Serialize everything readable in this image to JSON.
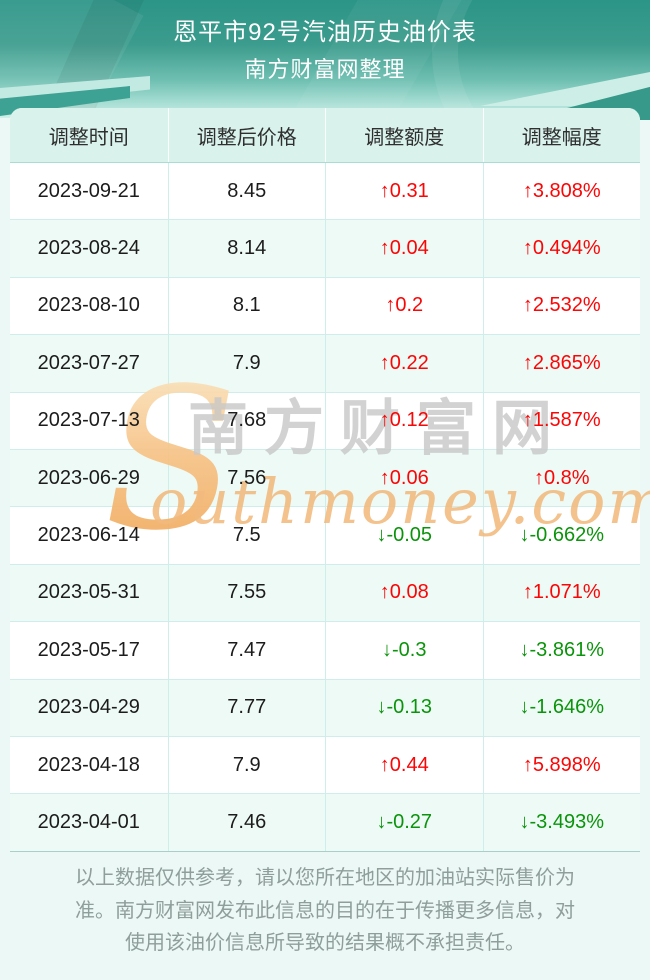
{
  "banner": {
    "title": "恩平市92号汽油历史油价表",
    "subtitle": "南方财富网整理"
  },
  "table": {
    "columns": [
      "调整时间",
      "调整后价格",
      "调整额度",
      "调整幅度"
    ],
    "up": {
      "arrow": "↑",
      "color": "#fb0505"
    },
    "down": {
      "arrow": "↓",
      "color": "#0b940b"
    },
    "rows": [
      {
        "date": "2023-09-21",
        "price": "8.45",
        "amount": "0.31",
        "percent": "3.808%",
        "direction": "up"
      },
      {
        "date": "2023-08-24",
        "price": "8.14",
        "amount": "0.04",
        "percent": "0.494%",
        "direction": "up"
      },
      {
        "date": "2023-08-10",
        "price": "8.1",
        "amount": "0.2",
        "percent": "2.532%",
        "direction": "up"
      },
      {
        "date": "2023-07-27",
        "price": "7.9",
        "amount": "0.22",
        "percent": "2.865%",
        "direction": "up"
      },
      {
        "date": "2023-07-13",
        "price": "7.68",
        "amount": "0.12",
        "percent": "1.587%",
        "direction": "up"
      },
      {
        "date": "2023-06-29",
        "price": "7.56",
        "amount": "0.06",
        "percent": "0.8%",
        "direction": "up"
      },
      {
        "date": "2023-06-14",
        "price": "7.5",
        "amount": "-0.05",
        "percent": "-0.662%",
        "direction": "down"
      },
      {
        "date": "2023-05-31",
        "price": "7.55",
        "amount": "0.08",
        "percent": "1.071%",
        "direction": "up"
      },
      {
        "date": "2023-05-17",
        "price": "7.47",
        "amount": "-0.3",
        "percent": "-3.861%",
        "direction": "down"
      },
      {
        "date": "2023-04-29",
        "price": "7.77",
        "amount": "-0.13",
        "percent": "-1.646%",
        "direction": "down"
      },
      {
        "date": "2023-04-18",
        "price": "7.9",
        "amount": "0.44",
        "percent": "5.898%",
        "direction": "up"
      },
      {
        "date": "2023-04-01",
        "price": "7.46",
        "amount": "-0.27",
        "percent": "-3.493%",
        "direction": "down"
      }
    ]
  },
  "watermark": {
    "initial": "S",
    "cn": "南方财富网",
    "en": "outhmoney.com"
  },
  "footer": {
    "disclaimer": "以上数据仅供参考，请以您所在地区的加油站实际售价为准。南方财富网发布此信息的目的在于传播更多信息，对使用该油价信息所导致的结果概不承担责任。"
  },
  "chart_data": {
    "type": "table",
    "title": "恩平市92号汽油历史油价表",
    "subtitle": "南方财富网整理",
    "columns": [
      "调整时间",
      "调整后价格",
      "调整额度",
      "调整幅度"
    ],
    "rows": [
      [
        "2023-09-21",
        "8.45",
        "↑0.31",
        "↑3.808%"
      ],
      [
        "2023-08-24",
        "8.14",
        "↑0.04",
        "↑0.494%"
      ],
      [
        "2023-08-10",
        "8.1",
        "↑0.2",
        "↑2.532%"
      ],
      [
        "2023-07-27",
        "7.9",
        "↑0.22",
        "↑2.865%"
      ],
      [
        "2023-07-13",
        "7.68",
        "↑0.12",
        "↑1.587%"
      ],
      [
        "2023-06-29",
        "7.56",
        "↑0.06",
        "↑0.8%"
      ],
      [
        "2023-06-14",
        "7.5",
        "↓-0.05",
        "↓-0.662%"
      ],
      [
        "2023-05-31",
        "7.55",
        "↑0.08",
        "↑1.071%"
      ],
      [
        "2023-05-17",
        "7.47",
        "↓-0.3",
        "↓-3.861%"
      ],
      [
        "2023-04-29",
        "7.77",
        "↓-0.13",
        "↓-1.646%"
      ],
      [
        "2023-04-18",
        "7.9",
        "↑0.44",
        "↑5.898%"
      ],
      [
        "2023-04-01",
        "7.46",
        "↓-0.27",
        "↓-3.493%"
      ]
    ],
    "up_color": "#fb0505",
    "down_color": "#0b940b"
  }
}
